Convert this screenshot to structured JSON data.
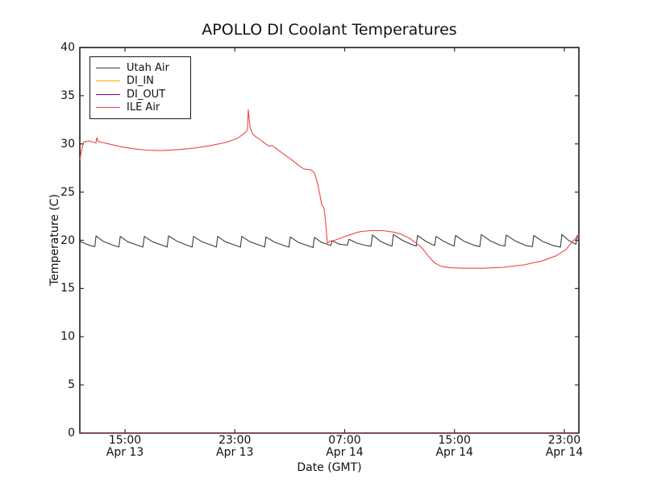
{
  "chart_data": {
    "type": "line",
    "title": "APOLLO DI Coolant Temperatures",
    "xlabel": "Date (GMT)",
    "ylabel": "Temperature (C)",
    "ylim": [
      0,
      40
    ],
    "xlim_hours_since_apr13_0000": [
      11.71,
      48.06
    ],
    "grid": false,
    "tick_direction": "in",
    "y_axis": {
      "ticks": [
        0,
        5,
        10,
        15,
        20,
        25,
        30,
        35,
        40
      ]
    },
    "x_axis": {
      "ticks": [
        {
          "hour": 15,
          "time": "15:00",
          "date": "Apr 13"
        },
        {
          "hour": 23,
          "time": "23:00",
          "date": "Apr 13"
        },
        {
          "hour": 31,
          "time": "07:00",
          "date": "Apr 14"
        },
        {
          "hour": 39,
          "time": "15:00",
          "date": "Apr 14"
        },
        {
          "hour": 47,
          "time": "23:00",
          "date": "Apr 14"
        }
      ]
    },
    "legend": {
      "position": "upper left",
      "entries": [
        {
          "label": "Utah Air",
          "color": "#3c3c3c"
        },
        {
          "label": "DI_IN",
          "color": "#ffa500"
        },
        {
          "label": "DI_OUT",
          "color": "#800080"
        },
        {
          "label": "ILE Air",
          "color": "#ee4444"
        }
      ]
    },
    "series": [
      {
        "name": "Utah Air",
        "color": "#3c3c3c",
        "width": 1.1,
        "points": [
          [
            11.71,
            19.9
          ],
          [
            12.2,
            19.6
          ],
          [
            12.6,
            19.4
          ],
          [
            12.8,
            19.35
          ],
          [
            12.89,
            20.45
          ],
          [
            13.4,
            19.9
          ],
          [
            14.1,
            19.5
          ],
          [
            14.55,
            19.3
          ],
          [
            14.65,
            20.4
          ],
          [
            15.2,
            19.85
          ],
          [
            15.9,
            19.5
          ],
          [
            16.3,
            19.3
          ],
          [
            16.41,
            20.4
          ],
          [
            17.0,
            19.85
          ],
          [
            17.7,
            19.5
          ],
          [
            18.07,
            19.3
          ],
          [
            18.17,
            20.45
          ],
          [
            18.8,
            19.9
          ],
          [
            19.5,
            19.5
          ],
          [
            19.89,
            19.3
          ],
          [
            19.99,
            20.4
          ],
          [
            20.6,
            19.85
          ],
          [
            21.3,
            19.5
          ],
          [
            21.65,
            19.3
          ],
          [
            21.75,
            20.4
          ],
          [
            22.3,
            19.85
          ],
          [
            23.0,
            19.5
          ],
          [
            23.41,
            19.3
          ],
          [
            23.51,
            20.4
          ],
          [
            24.1,
            19.85
          ],
          [
            24.8,
            19.5
          ],
          [
            25.17,
            19.3
          ],
          [
            25.27,
            20.35
          ],
          [
            25.9,
            19.8
          ],
          [
            26.6,
            19.45
          ],
          [
            26.94,
            19.3
          ],
          [
            27.04,
            20.35
          ],
          [
            27.6,
            19.8
          ],
          [
            28.3,
            19.45
          ],
          [
            28.7,
            19.25
          ],
          [
            28.8,
            20.3
          ],
          [
            29.3,
            19.8
          ],
          [
            29.9,
            19.5
          ],
          [
            29.99,
            19.45
          ],
          [
            30.09,
            19.95
          ],
          [
            30.6,
            19.6
          ],
          [
            31.2,
            19.5
          ],
          [
            31.32,
            20.1
          ],
          [
            31.9,
            19.7
          ],
          [
            32.6,
            19.45
          ],
          [
            32.92,
            19.4
          ],
          [
            33.02,
            20.55
          ],
          [
            33.6,
            19.9
          ],
          [
            34.2,
            19.5
          ],
          [
            34.45,
            19.4
          ],
          [
            34.55,
            20.6
          ],
          [
            35.2,
            20.0
          ],
          [
            35.9,
            19.55
          ],
          [
            36.21,
            19.4
          ],
          [
            36.31,
            20.5
          ],
          [
            36.9,
            19.9
          ],
          [
            37.4,
            19.55
          ],
          [
            37.56,
            19.45
          ],
          [
            37.66,
            20.4
          ],
          [
            38.2,
            19.9
          ],
          [
            38.8,
            19.5
          ],
          [
            38.97,
            19.4
          ],
          [
            39.07,
            20.5
          ],
          [
            39.7,
            19.9
          ],
          [
            40.5,
            19.45
          ],
          [
            40.85,
            19.35
          ],
          [
            40.95,
            20.6
          ],
          [
            41.6,
            19.95
          ],
          [
            42.3,
            19.5
          ],
          [
            42.67,
            19.4
          ],
          [
            42.77,
            20.55
          ],
          [
            43.4,
            19.95
          ],
          [
            44.2,
            19.45
          ],
          [
            44.67,
            19.35
          ],
          [
            44.77,
            20.5
          ],
          [
            45.4,
            19.9
          ],
          [
            46.2,
            19.45
          ],
          [
            46.72,
            19.3
          ],
          [
            46.82,
            20.6
          ],
          [
            47.3,
            20.0
          ],
          [
            47.75,
            19.65
          ],
          [
            47.84,
            19.6
          ],
          [
            47.94,
            20.5
          ],
          [
            48.06,
            20.25
          ]
        ]
      },
      {
        "name": "DI_IN",
        "color": "#ffa500",
        "width": 1.1,
        "opacity": 0.9,
        "points": [
          [
            11.71,
            0
          ],
          [
            48.06,
            0
          ]
        ]
      },
      {
        "name": "DI_OUT",
        "color": "#800080",
        "width": 1.1,
        "opacity": 0.75,
        "points": [
          [
            11.71,
            0
          ],
          [
            48.06,
            0
          ]
        ]
      },
      {
        "name": "ILE Air",
        "color": "#ee4444",
        "width": 1.1,
        "points": [
          [
            11.71,
            28.3
          ],
          [
            11.83,
            29.3
          ],
          [
            12.0,
            30.2
          ],
          [
            12.36,
            30.3
          ],
          [
            12.8,
            30.15
          ],
          [
            12.89,
            30.1
          ],
          [
            12.95,
            30.65
          ],
          [
            13.06,
            30.25
          ],
          [
            13.83,
            30.0
          ],
          [
            14.7,
            29.7
          ],
          [
            15.6,
            29.5
          ],
          [
            16.5,
            29.35
          ],
          [
            17.64,
            29.3
          ],
          [
            18.8,
            29.4
          ],
          [
            19.99,
            29.55
          ],
          [
            21.16,
            29.8
          ],
          [
            22.34,
            30.15
          ],
          [
            23.22,
            30.6
          ],
          [
            23.69,
            31.1
          ],
          [
            23.92,
            31.45
          ],
          [
            23.98,
            33.55
          ],
          [
            24.1,
            31.8
          ],
          [
            24.28,
            31.05
          ],
          [
            24.57,
            30.7
          ],
          [
            24.98,
            30.3
          ],
          [
            25.33,
            29.9
          ],
          [
            25.51,
            29.75
          ],
          [
            25.69,
            29.85
          ],
          [
            25.92,
            29.6
          ],
          [
            26.45,
            29.05
          ],
          [
            27.04,
            28.45
          ],
          [
            27.62,
            27.8
          ],
          [
            28.04,
            27.4
          ],
          [
            28.56,
            27.3
          ],
          [
            28.8,
            27.0
          ],
          [
            29.03,
            25.9
          ],
          [
            29.21,
            24.6
          ],
          [
            29.33,
            23.7
          ],
          [
            29.5,
            23.35
          ],
          [
            29.62,
            21.8
          ],
          [
            29.74,
            19.7
          ],
          [
            29.91,
            19.9
          ],
          [
            30.27,
            20.0
          ],
          [
            30.85,
            20.3
          ],
          [
            31.44,
            20.6
          ],
          [
            32.14,
            20.9
          ],
          [
            32.91,
            21.0
          ],
          [
            33.79,
            21.0
          ],
          [
            34.55,
            20.85
          ],
          [
            35.08,
            20.65
          ],
          [
            35.67,
            20.25
          ],
          [
            36.26,
            19.65
          ],
          [
            36.67,
            19.15
          ],
          [
            37.08,
            18.4
          ],
          [
            37.55,
            17.65
          ],
          [
            38.02,
            17.3
          ],
          [
            38.66,
            17.15
          ],
          [
            39.66,
            17.1
          ],
          [
            41.13,
            17.1
          ],
          [
            42.6,
            17.2
          ],
          [
            44.06,
            17.45
          ],
          [
            45.36,
            17.85
          ],
          [
            46.41,
            18.4
          ],
          [
            47.12,
            19.05
          ],
          [
            47.59,
            19.85
          ],
          [
            47.88,
            20.3
          ],
          [
            48.06,
            20.45
          ]
        ]
      }
    ],
    "style": {
      "spine_color": "#2b2b2b",
      "background": "#ffffff",
      "text_color": "#111111"
    }
  }
}
